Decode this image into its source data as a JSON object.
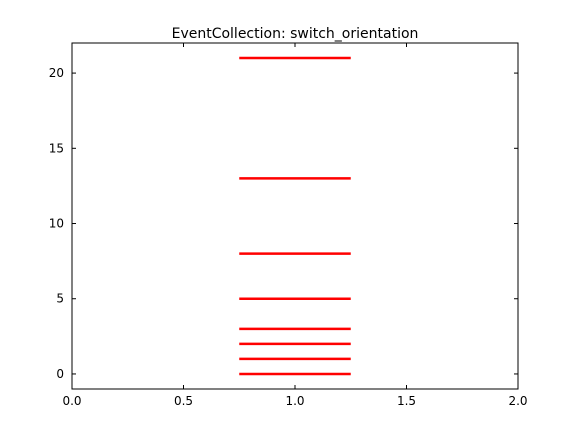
{
  "chart_data": {
    "type": "eventplot",
    "title": "EventCollection: switch_orientation",
    "xlabel": "",
    "ylabel": "",
    "xlim": [
      0.0,
      2.0
    ],
    "ylim": [
      -1,
      22
    ],
    "xticks": [
      "0.0",
      "0.5",
      "1.0",
      "1.5",
      "2.0"
    ],
    "yticks": [
      "0",
      "5",
      "10",
      "15",
      "20"
    ],
    "orientation": "horizontal",
    "line_x_range": [
      0.75,
      1.25
    ],
    "events": [
      0,
      1,
      2,
      3,
      5,
      8,
      13,
      21
    ],
    "color": "#ff0000",
    "grid": false
  }
}
